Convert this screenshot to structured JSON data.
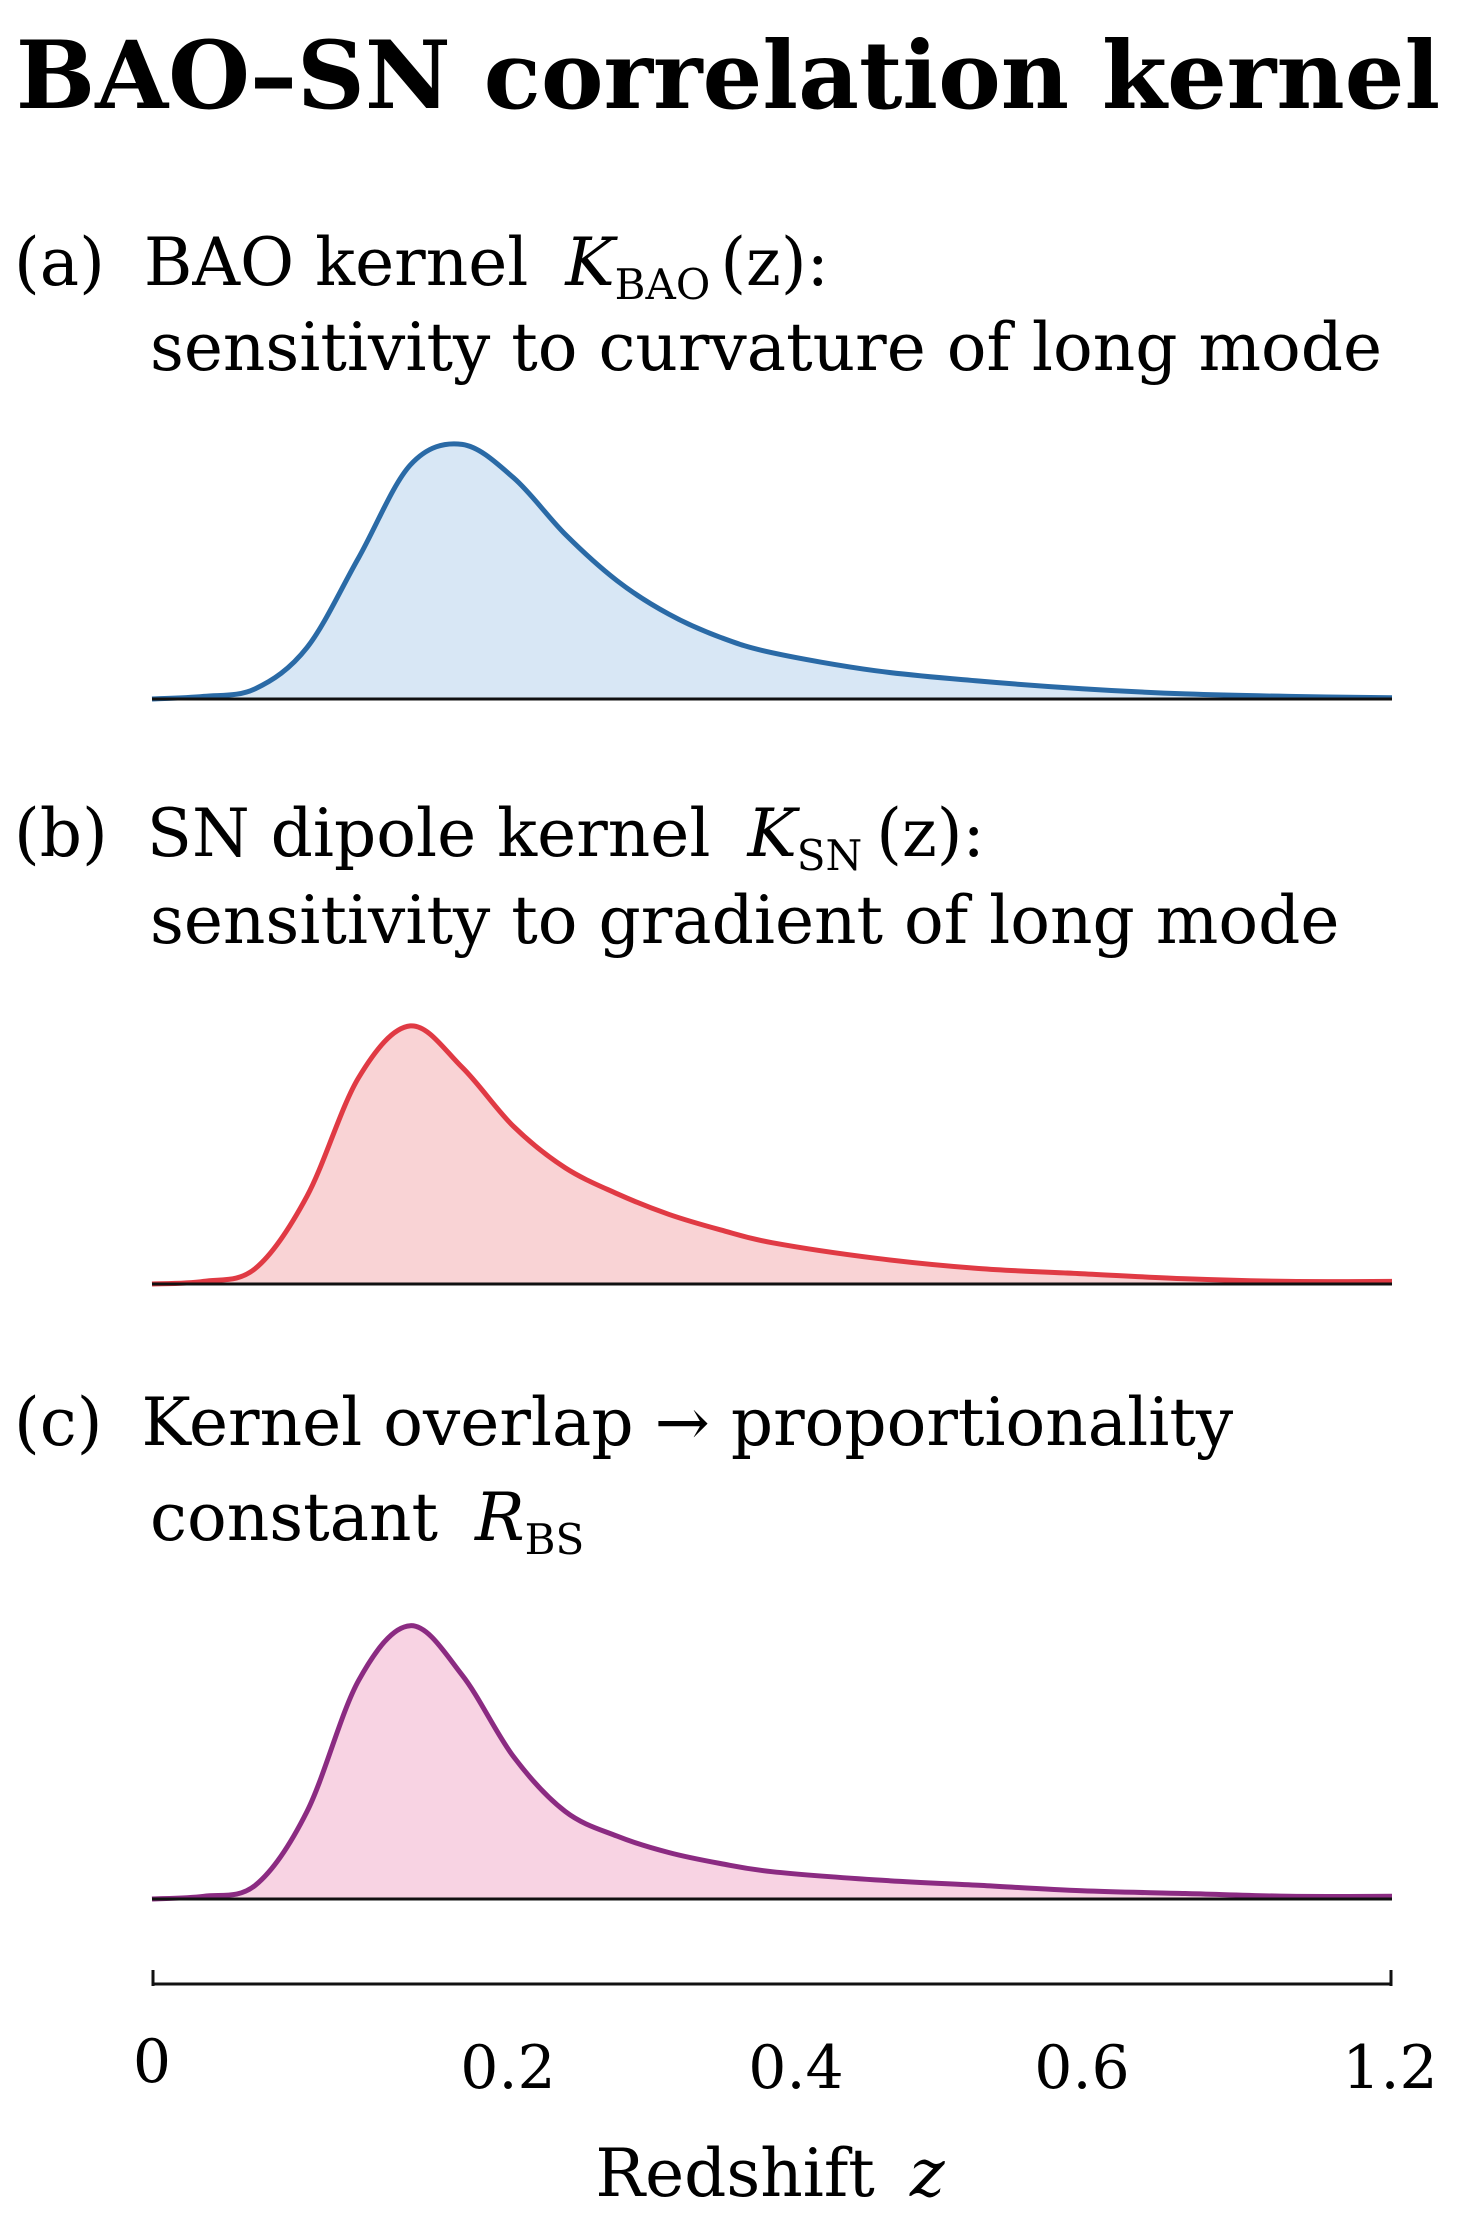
{
  "title": "BAO–SN correlation kernel",
  "panels": [
    {
      "id": "a",
      "tag": "(a)",
      "line1_text": "BAO kernel",
      "symbol": "K",
      "subscript": "BAO",
      "arg": "(z):",
      "line2": "sensitivity to curvature of long mode",
      "color": "#2a6aa6",
      "fill": "#d8e7f5"
    },
    {
      "id": "b",
      "tag": "(b)",
      "line1_text": "SN dipole kernel",
      "symbol": "K",
      "subscript": "SN",
      "arg": "(z):",
      "line2": "sensitivity to gradient of long mode",
      "color": "#e03a44",
      "fill": "#f9d3d5"
    },
    {
      "id": "c",
      "tag": "(c)",
      "line1_text": "Kernel overlap → proportionality",
      "line2_text": "constant",
      "symbol": "R",
      "subscript": "BS",
      "color": "#8b2b82",
      "fill": "#f8d3e3"
    }
  ],
  "chart_data": [
    {
      "type": "area",
      "title": "BAO kernel K_BAO(z)",
      "series": [
        {
          "name": "K_BAO",
          "x": [
            0,
            0.05,
            0.1,
            0.15,
            0.2,
            0.25,
            0.3,
            0.35,
            0.4,
            0.45,
            0.5,
            0.55,
            0.6,
            0.7,
            0.8,
            0.9,
            1.0,
            1.1,
            1.2
          ],
          "values": [
            0.0,
            0.01,
            0.04,
            0.2,
            0.55,
            0.91,
            0.99,
            0.86,
            0.64,
            0.46,
            0.33,
            0.24,
            0.18,
            0.11,
            0.07,
            0.04,
            0.02,
            0.01,
            0.005
          ]
        }
      ],
      "ylim": [
        0,
        1.05
      ]
    },
    {
      "type": "area",
      "title": "SN dipole kernel K_SN(z)",
      "series": [
        {
          "name": "K_SN",
          "x": [
            0,
            0.05,
            0.1,
            0.15,
            0.2,
            0.25,
            0.3,
            0.35,
            0.4,
            0.45,
            0.5,
            0.55,
            0.6,
            0.7,
            0.8,
            0.9,
            1.0,
            1.1,
            1.2
          ],
          "values": [
            0.0,
            0.01,
            0.06,
            0.34,
            0.8,
            1.0,
            0.84,
            0.61,
            0.45,
            0.35,
            0.27,
            0.21,
            0.16,
            0.1,
            0.06,
            0.04,
            0.02,
            0.01,
            0.01
          ]
        }
      ],
      "ylim": [
        0,
        1.05
      ]
    },
    {
      "type": "area",
      "title": "Kernel overlap",
      "series": [
        {
          "name": "overlap",
          "x": [
            0,
            0.05,
            0.1,
            0.15,
            0.2,
            0.25,
            0.3,
            0.35,
            0.4,
            0.45,
            0.5,
            0.55,
            0.6,
            0.7,
            0.8,
            0.9,
            1.0,
            1.1,
            1.2
          ],
          "values": [
            0.0,
            0.01,
            0.05,
            0.32,
            0.8,
            1.0,
            0.82,
            0.52,
            0.32,
            0.23,
            0.17,
            0.13,
            0.1,
            0.07,
            0.05,
            0.03,
            0.02,
            0.01,
            0.01
          ]
        }
      ],
      "ylim": [
        0,
        1.05
      ]
    }
  ],
  "x_axis": {
    "ticks": [
      {
        "label": "0",
        "value": 0
      },
      {
        "label": "0.2",
        "value": 0.2
      },
      {
        "label": "0.4",
        "value": 0.4
      },
      {
        "label": "0.6",
        "value": 0.6
      },
      {
        "label": "1.2",
        "value": 1.2
      }
    ],
    "label_text": "Redshift",
    "label_symbol": "z"
  }
}
